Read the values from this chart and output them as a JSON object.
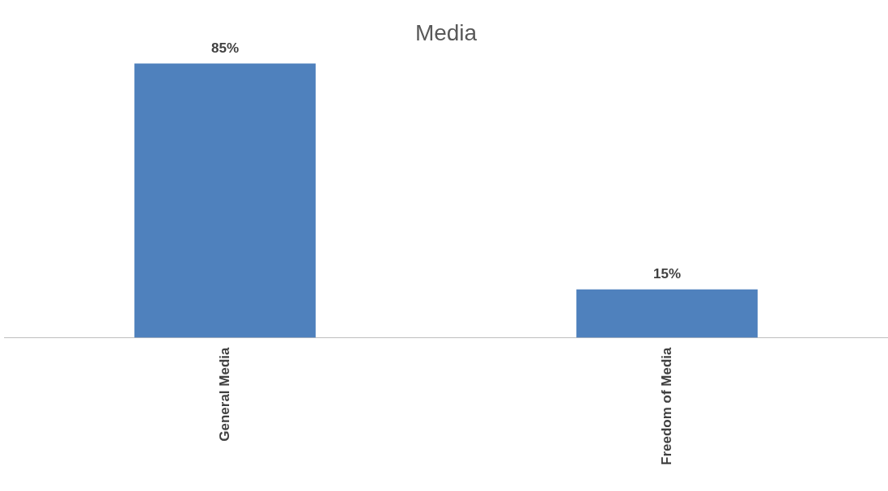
{
  "chart_data": {
    "type": "bar",
    "title": "Media",
    "categories": [
      "General Media",
      "Freedom of Media"
    ],
    "values": [
      85,
      15
    ],
    "color": "#4f81bd",
    "value_labels": [
      "85%",
      "15%"
    ],
    "grid": false,
    "legend": false
  }
}
